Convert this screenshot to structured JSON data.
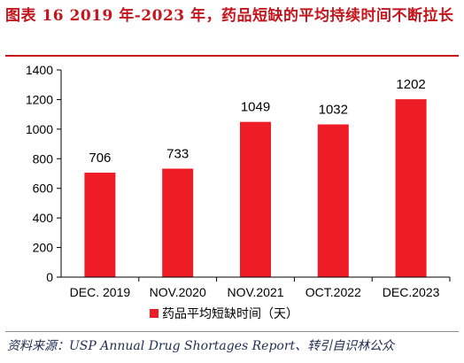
{
  "title": "图表 16   2019 年-2023 年，药品短缺的平均持续时间不断拉长",
  "source": "资料来源：USP Annual Drug Shortages Report、转引自识林公众",
  "colors": {
    "bar": "#ee1c25",
    "title": "#c4161c",
    "axis": "#000000"
  },
  "chart_data": {
    "type": "bar",
    "categories": [
      "DEC. 2019",
      "NOV.2020",
      "NOV.2021",
      "OCT.2022",
      "DEC.2023"
    ],
    "series": [
      {
        "name": "药品平均短缺时间（天）",
        "values": [
          706,
          733,
          1049,
          1032,
          1202
        ]
      }
    ],
    "ylim": [
      0,
      1400
    ],
    "yticks": [
      0,
      200,
      400,
      600,
      800,
      1000,
      1200,
      1400
    ],
    "grid": false,
    "legend": "bottom-center"
  }
}
